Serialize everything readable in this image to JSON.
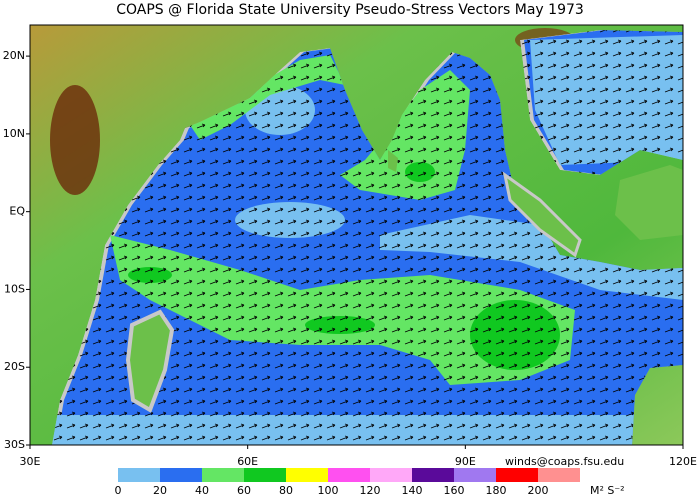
{
  "title": "COAPS @ Florida State University Pseudo-Stress Vectors  May 1973",
  "map": {
    "lon_range": [
      30,
      120
    ],
    "lat_range": [
      -30,
      24
    ],
    "lon_ticks": [
      {
        "value": 30,
        "label": "30E"
      },
      {
        "value": 60,
        "label": "60E"
      },
      {
        "value": 90,
        "label": "90E"
      },
      {
        "value": 120,
        "label": "120E"
      }
    ],
    "lat_ticks": [
      {
        "value": 20,
        "label": "20N"
      },
      {
        "value": 10,
        "label": "10N"
      },
      {
        "value": 0,
        "label": "EQ"
      },
      {
        "value": -10,
        "label": "10S"
      },
      {
        "value": -20,
        "label": "20S"
      },
      {
        "value": -30,
        "label": "30S"
      }
    ]
  },
  "colorbar": {
    "labels": [
      0,
      20,
      40,
      60,
      80,
      100,
      120,
      140,
      160,
      180,
      200
    ],
    "colors": [
      "#78c0f0",
      "#2a6ef0",
      "#64e664",
      "#10c820",
      "#ffff00",
      "#ff50f0",
      "#ffa8f8",
      "#5a0a9a",
      "#a078f0",
      "#ff0000",
      "#ff9090"
    ],
    "units": "M² S⁻²"
  },
  "credit": "winds@coaps.fsu.edu"
}
